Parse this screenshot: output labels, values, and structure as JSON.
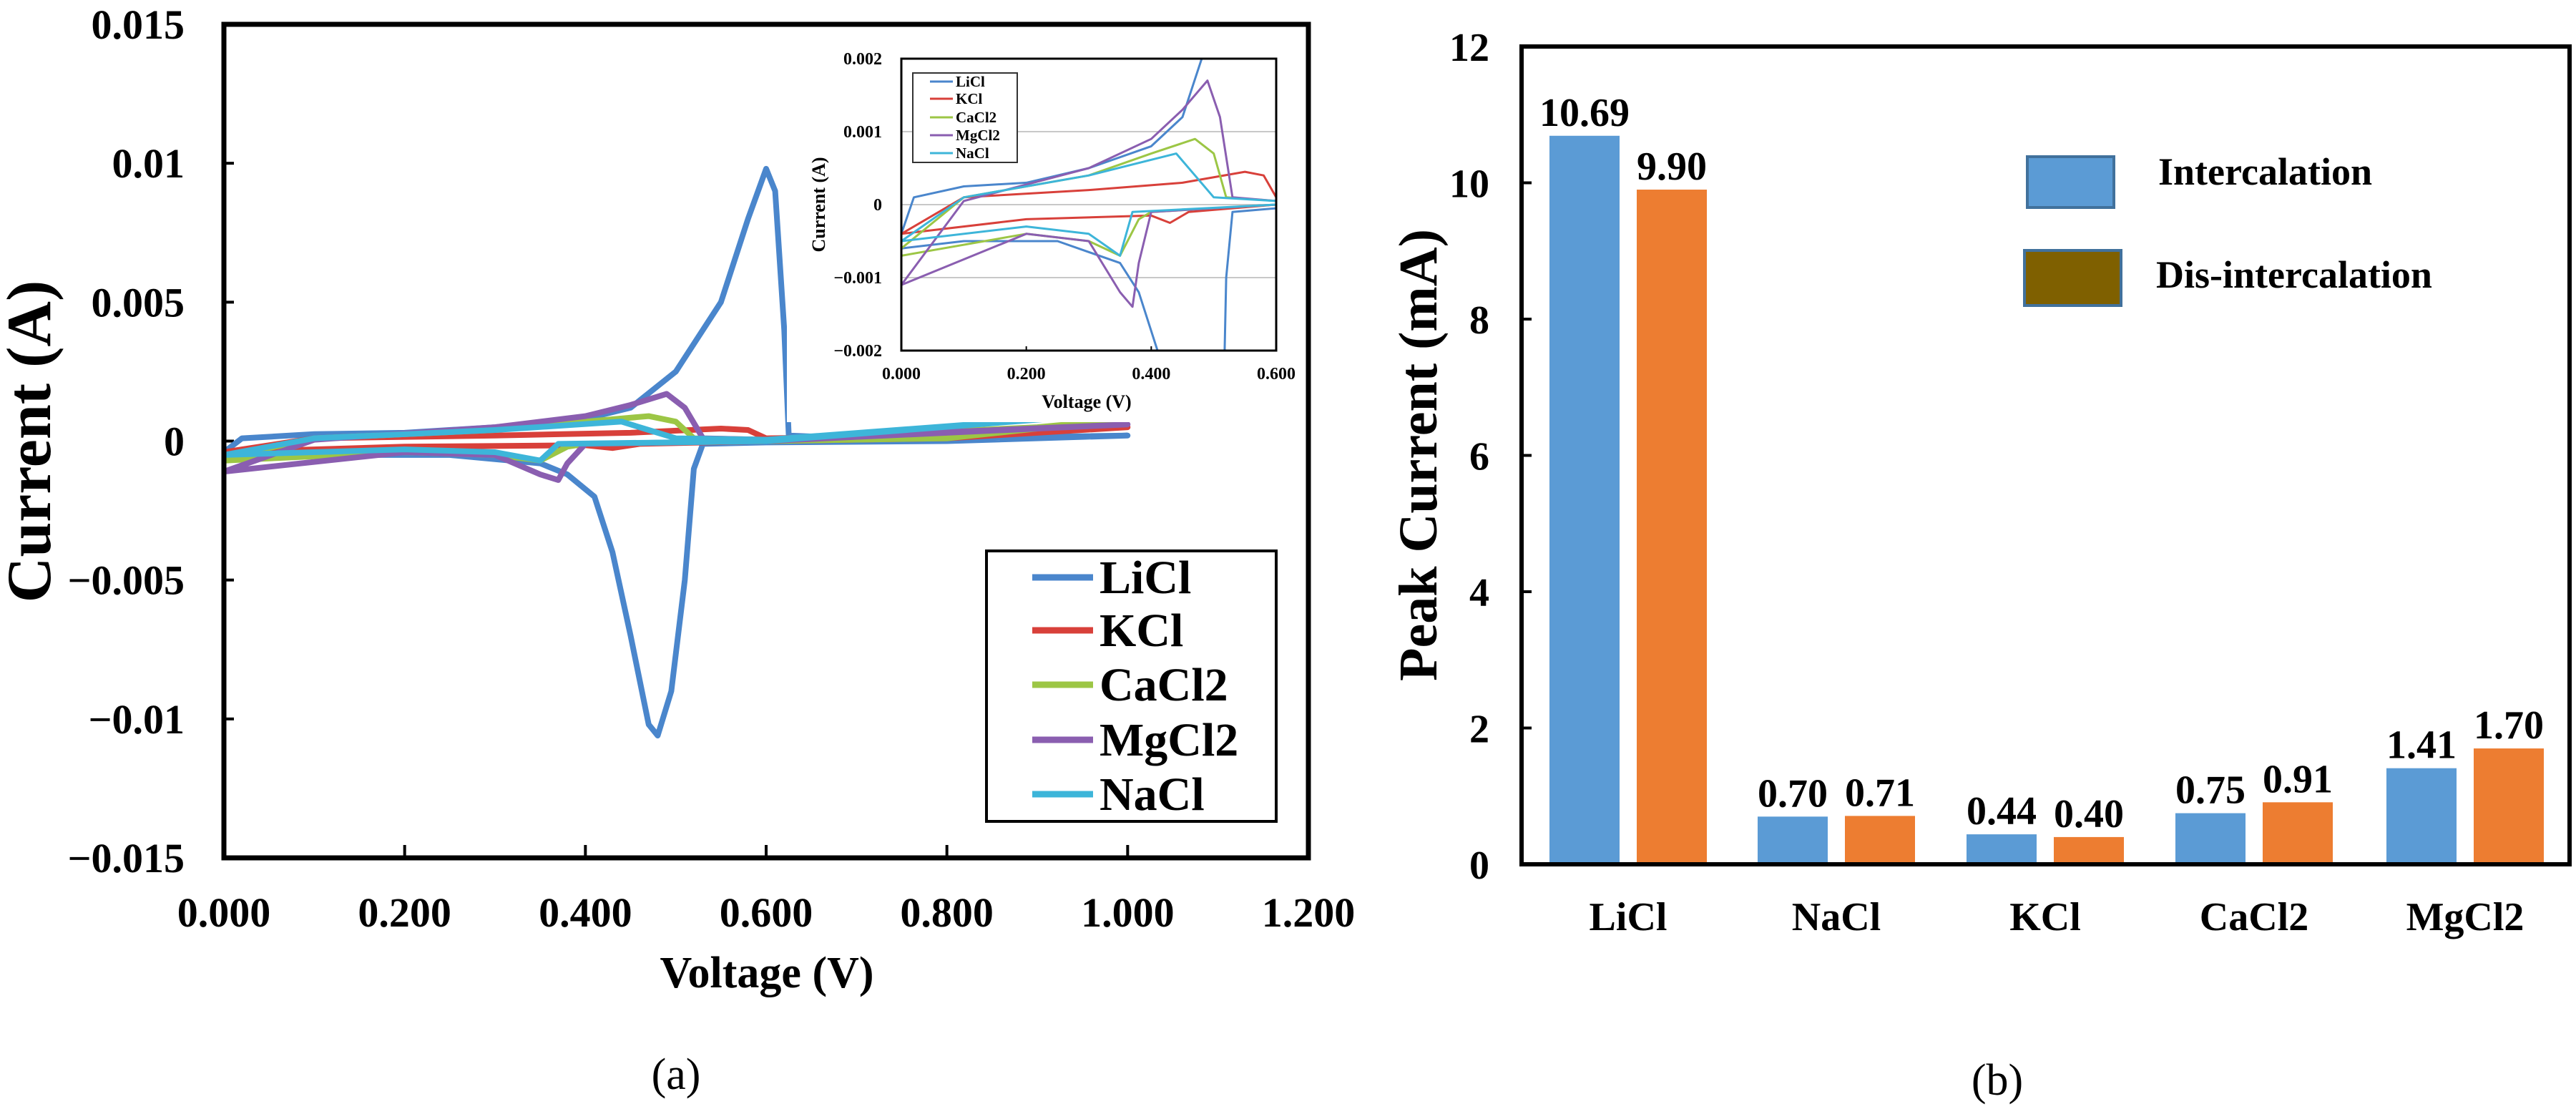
{
  "chart_data": [
    {
      "type": "line",
      "panel_label": "(a)",
      "xlabel": "Voltage (V)",
      "ylabel": "Current (A)",
      "xlim": [
        0,
        1.2
      ],
      "ylim": [
        -0.015,
        0.015
      ],
      "xticks": [
        "0.000",
        "0.200",
        "0.400",
        "0.600",
        "0.800",
        "1.000",
        "1.200"
      ],
      "yticks": [
        "0.015",
        "0.01",
        "0.005",
        "0",
        "−0.005",
        "−0.01",
        "−0.015"
      ],
      "legend_position": "bottom-right",
      "series": [
        {
          "name": "LiCl",
          "color": "#4a86cc",
          "points": [
            [
              0,
              -0.0004
            ],
            [
              0.02,
              0.0001
            ],
            [
              0.1,
              0.00025
            ],
            [
              0.2,
              0.0003
            ],
            [
              0.3,
              0.0005
            ],
            [
              0.4,
              0.0008
            ],
            [
              0.45,
              0.0012
            ],
            [
              0.5,
              0.0025
            ],
            [
              0.55,
              0.005
            ],
            [
              0.58,
              0.008
            ],
            [
              0.6,
              0.0098
            ],
            [
              0.61,
              0.009
            ],
            [
              0.62,
              0.004
            ],
            [
              0.625,
              0.0002
            ],
            [
              0.7,
              0.0001
            ],
            [
              0.8,
              0.0001
            ],
            [
              1.0,
              0.0002
            ],
            [
              0.8,
              0.0
            ],
            [
              0.6,
              -5e-05
            ],
            [
              0.53,
              -0.0001
            ],
            [
              0.52,
              -0.001
            ],
            [
              0.51,
              -0.005
            ],
            [
              0.495,
              -0.009
            ],
            [
              0.48,
              -0.0106
            ],
            [
              0.47,
              -0.0102
            ],
            [
              0.45,
              -0.007
            ],
            [
              0.43,
              -0.004
            ],
            [
              0.41,
              -0.002
            ],
            [
              0.38,
              -0.0012
            ],
            [
              0.35,
              -0.0008
            ],
            [
              0.25,
              -0.0005
            ],
            [
              0.1,
              -0.0005
            ],
            [
              0,
              -0.0006
            ]
          ]
        },
        {
          "name": "KCl",
          "color": "#d8403a",
          "points": [
            [
              0,
              -0.0004
            ],
            [
              0.1,
              0.0001
            ],
            [
              0.3,
              0.0002
            ],
            [
              0.45,
              0.0003
            ],
            [
              0.55,
              0.00045
            ],
            [
              0.58,
              0.0004
            ],
            [
              0.6,
              0.0001
            ],
            [
              0.8,
              0.0002
            ],
            [
              1.0,
              0.0005
            ],
            [
              0.8,
              0.0001
            ],
            [
              0.6,
              0.0
            ],
            [
              0.46,
              -0.0001
            ],
            [
              0.43,
              -0.00025
            ],
            [
              0.4,
              -0.00015
            ],
            [
              0.2,
              -0.0002
            ],
            [
              0,
              -0.0004
            ]
          ]
        },
        {
          "name": "CaCl2",
          "color": "#9cc645",
          "points": [
            [
              0,
              -0.0006
            ],
            [
              0.1,
              0.0001
            ],
            [
              0.3,
              0.0004
            ],
            [
              0.4,
              0.0007
            ],
            [
              0.47,
              0.0009
            ],
            [
              0.5,
              0.0007
            ],
            [
              0.52,
              0.0001
            ],
            [
              0.6,
              5e-05
            ],
            [
              0.9,
              0.0005
            ],
            [
              1.0,
              0.0008
            ],
            [
              0.8,
              0.0001
            ],
            [
              0.4,
              -0.0001
            ],
            [
              0.38,
              -0.0002
            ],
            [
              0.35,
              -0.0007
            ],
            [
              0.3,
              -0.0005
            ],
            [
              0.2,
              -0.0004
            ],
            [
              0,
              -0.0007
            ]
          ]
        },
        {
          "name": "MgCl2",
          "color": "#8a5eb0",
          "points": [
            [
              0,
              -0.0011
            ],
            [
              0.1,
              5e-05
            ],
            [
              0.3,
              0.0005
            ],
            [
              0.4,
              0.0009
            ],
            [
              0.45,
              0.0013
            ],
            [
              0.49,
              0.0017
            ],
            [
              0.51,
              0.0012
            ],
            [
              0.53,
              0.0001
            ],
            [
              0.6,
              5e-05
            ],
            [
              1.0,
              0.0006
            ],
            [
              0.6,
              0.0
            ],
            [
              0.4,
              -0.0001
            ],
            [
              0.38,
              -0.0008
            ],
            [
              0.37,
              -0.0014
            ],
            [
              0.35,
              -0.0012
            ],
            [
              0.3,
              -0.0005
            ],
            [
              0.2,
              -0.0004
            ],
            [
              0,
              -0.0011
            ]
          ]
        },
        {
          "name": "NaCl",
          "color": "#3db5d9",
          "points": [
            [
              0,
              -0.0005
            ],
            [
              0.1,
              0.0001
            ],
            [
              0.3,
              0.0004
            ],
            [
              0.44,
              0.0007
            ],
            [
              0.47,
              0.0004
            ],
            [
              0.5,
              0.0001
            ],
            [
              0.6,
              5e-05
            ],
            [
              0.95,
              0.0009
            ],
            [
              0.6,
              0.0
            ],
            [
              0.37,
              -0.0001
            ],
            [
              0.35,
              -0.0007
            ],
            [
              0.3,
              -0.0004
            ],
            [
              0.2,
              -0.0003
            ],
            [
              0,
              -0.0005
            ]
          ]
        }
      ],
      "inset": {
        "xlabel": "Voltage (V)",
        "ylabel": "Current (A)",
        "xlim": [
          0,
          0.6
        ],
        "ylim": [
          -0.002,
          0.002
        ],
        "xticks": [
          "0.000",
          "0.200",
          "0.400",
          "0.600"
        ],
        "yticks": [
          "0.002",
          "0.001",
          "0",
          "−0.001",
          "−0.002"
        ],
        "grid": true,
        "legend_position": "top-left"
      }
    },
    {
      "type": "bar",
      "panel_label": "(b)",
      "xlabel": "",
      "ylabel": "Peak Current (mA)",
      "ylim": [
        0,
        12
      ],
      "yticks": [
        "0",
        "2",
        "4",
        "6",
        "8",
        "10",
        "12"
      ],
      "categories": [
        "LiCl",
        "NaCl",
        "KCl",
        "CaCl2",
        "MgCl2"
      ],
      "legend_position": "top-right",
      "series": [
        {
          "name": "Intercalation",
          "color": "#5b9bd5",
          "legend_color": "#5b9bd5",
          "values": [
            10.69,
            0.7,
            0.44,
            0.75,
            1.41
          ],
          "labels": [
            "10.69",
            "0.70",
            "0.44",
            "0.75",
            "1.41"
          ]
        },
        {
          "name": "Dis-intercalation",
          "color": "#ed7d31",
          "legend_color": "#7f6000",
          "values": [
            9.9,
            0.71,
            0.4,
            0.91,
            1.7
          ],
          "labels": [
            "9.90",
            "0.71",
            "0.40",
            "0.91",
            "1.70"
          ]
        }
      ]
    }
  ]
}
